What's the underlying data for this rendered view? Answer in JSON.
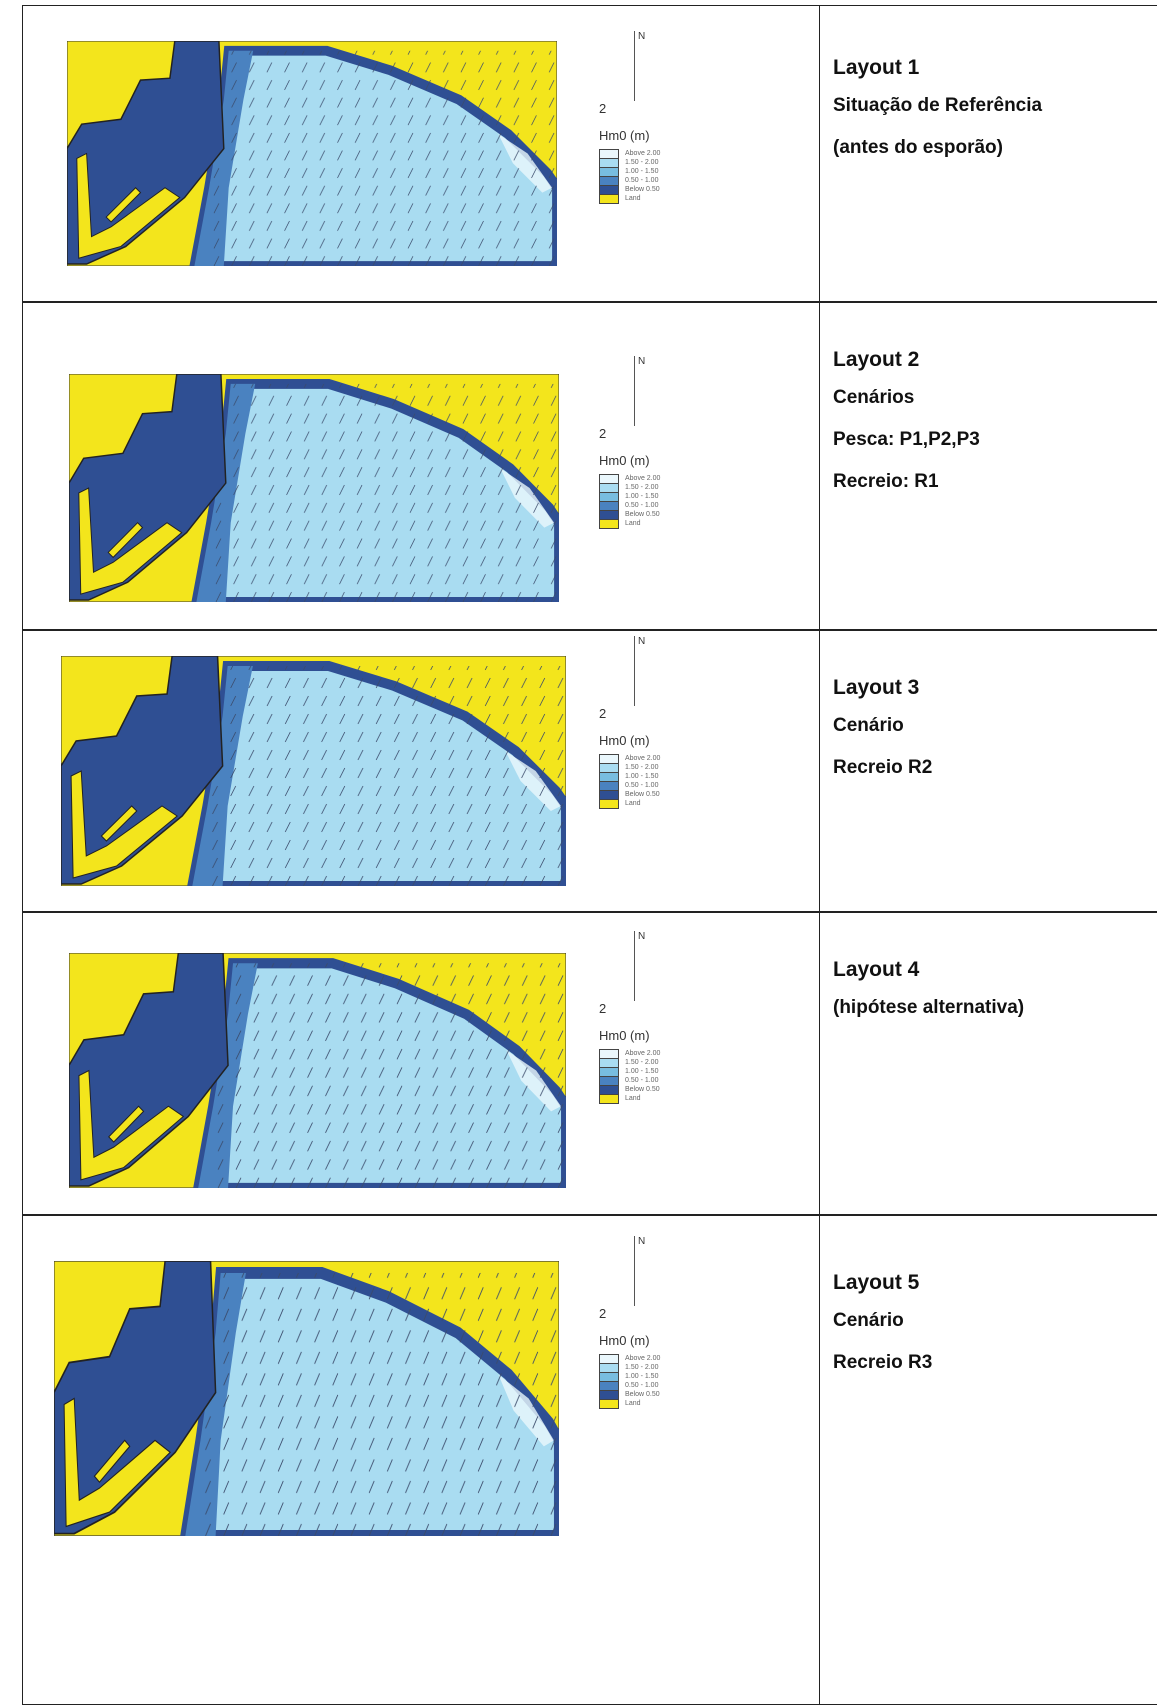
{
  "rows": [
    {
      "map": {
        "north": "N",
        "scale": "2",
        "legend_title": "Hm0 (m)",
        "legend": [
          "Above 2.00",
          "1.50 - 2.00",
          "1.00 - 1.50",
          "0.50 - 1.00",
          "Below 0.50",
          "Land"
        ]
      },
      "text": {
        "title": "Layout 1",
        "lines": [
          "Situação de Referência",
          "(antes do esporão)"
        ]
      }
    },
    {
      "map": {
        "north": "N",
        "scale": "2",
        "legend_title": "Hm0 (m)",
        "legend": [
          "Above 2.00",
          "1.50 - 2.00",
          "1.00 - 1.50",
          "0.50 - 1.00",
          "Below 0.50",
          "Land"
        ]
      },
      "text": {
        "title": "Layout 2",
        "lines": [
          "Cenários",
          "Pesca: P1,P2,P3",
          "Recreio: R1"
        ]
      }
    },
    {
      "map": {
        "north": "N",
        "scale": "2",
        "legend_title": "Hm0 (m)",
        "legend": [
          "Above 2.00",
          "1.50 - 2.00",
          "1.00 - 1.50",
          "0.50 - 1.00",
          "Below 0.50",
          "Land"
        ]
      },
      "text": {
        "title": "Layout 3",
        "lines": [
          "Cenário",
          "Recreio R2"
        ]
      }
    },
    {
      "map": {
        "north": "N",
        "scale": "2",
        "legend_title": "Hm0 (m)",
        "legend": [
          "Above 2.00",
          "1.50 - 2.00",
          "1.00 - 1.50",
          "0.50 - 1.00",
          "Below 0.50",
          "Land"
        ]
      },
      "text": {
        "title": "Layout 4",
        "lines": [
          "(hipótese alternativa)"
        ]
      }
    },
    {
      "map": {
        "north": "N",
        "scale": "2",
        "legend_title": "Hm0 (m)",
        "legend": [
          "Above 2.00",
          "1.50 - 2.00",
          "1.00 - 1.50",
          "0.50 - 1.00",
          "Below 0.50",
          "Land"
        ]
      },
      "text": {
        "title": "Layout 5",
        "lines": [
          "Cenário",
          "Recreio R3"
        ]
      }
    }
  ]
}
